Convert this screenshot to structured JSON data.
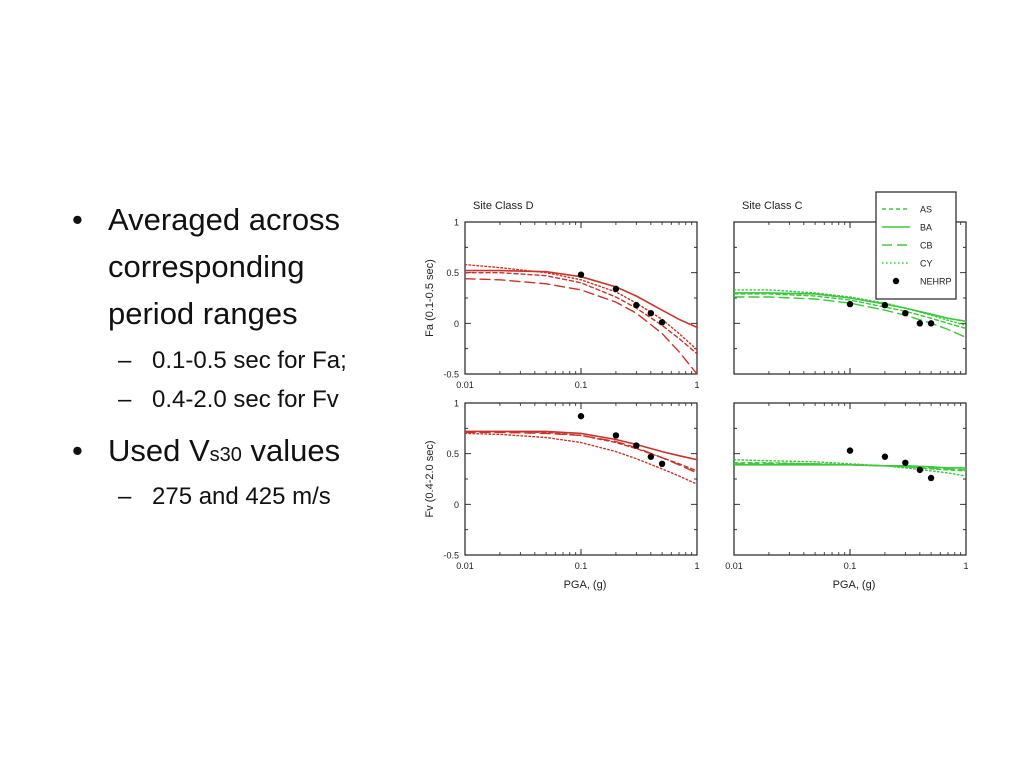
{
  "bullets": {
    "item1": "Averaged across corresponding period ranges",
    "item1_sub1": "0.1-0.5 sec for Fa;",
    "item1_sub2": "0.4-2.0 sec for Fv",
    "item2_pre": "Used V",
    "item2_sub": "s30",
    "item2_post": " values",
    "item2_sub1": "275 and 425 m/s",
    "dash": "–",
    "bullet": "•"
  },
  "chart_data": [
    {
      "type": "line",
      "title": "Site Class D",
      "xlabel": "",
      "ylabel": "Fa (0.1-0.5 sec)",
      "xscale": "log",
      "xlim": [
        0.01,
        1
      ],
      "ylim": [
        -0.5,
        1
      ],
      "xticks": [
        "0.01",
        "0.1",
        "1"
      ],
      "yticks": [
        "-0.5",
        "0",
        "0.5",
        "1"
      ],
      "color": "#c8342c",
      "series": [
        {
          "name": "AS",
          "style": "short-dash",
          "x": [
            0.01,
            0.02,
            0.05,
            0.1,
            0.2,
            0.3,
            0.5,
            0.7,
            1.0
          ],
          "y": [
            0.5,
            0.5,
            0.47,
            0.4,
            0.26,
            0.15,
            -0.02,
            -0.15,
            -0.3
          ]
        },
        {
          "name": "BA",
          "style": "solid",
          "x": [
            0.01,
            0.02,
            0.05,
            0.1,
            0.2,
            0.3,
            0.5,
            0.7,
            1.0
          ],
          "y": [
            0.52,
            0.52,
            0.51,
            0.46,
            0.36,
            0.27,
            0.13,
            0.04,
            -0.04
          ]
        },
        {
          "name": "CB",
          "style": "long-dash",
          "x": [
            0.01,
            0.02,
            0.05,
            0.1,
            0.2,
            0.3,
            0.5,
            0.7,
            1.0
          ],
          "y": [
            0.44,
            0.43,
            0.39,
            0.33,
            0.21,
            0.1,
            -0.1,
            -0.28,
            -0.5
          ]
        },
        {
          "name": "CY",
          "style": "dotted",
          "x": [
            0.01,
            0.02,
            0.05,
            0.1,
            0.2,
            0.3,
            0.5,
            0.7,
            1.0
          ],
          "y": [
            0.58,
            0.55,
            0.5,
            0.43,
            0.31,
            0.2,
            0.04,
            -0.1,
            -0.26
          ]
        }
      ],
      "nehrp_points": {
        "x": [
          0.1,
          0.2,
          0.3,
          0.4,
          0.5
        ],
        "y": [
          0.48,
          0.34,
          0.18,
          0.1,
          0.01
        ]
      }
    },
    {
      "type": "line",
      "title": "Site Class C",
      "xlabel": "",
      "ylabel": "",
      "xscale": "log",
      "xlim": [
        0.01,
        1
      ],
      "ylim": [
        -0.5,
        1
      ],
      "xticks": [],
      "yticks": [],
      "color": "#3cc83c",
      "series": [
        {
          "name": "AS",
          "style": "short-dash",
          "x": [
            0.01,
            0.02,
            0.05,
            0.1,
            0.2,
            0.3,
            0.5,
            0.7,
            1.0
          ],
          "y": [
            0.29,
            0.29,
            0.27,
            0.23,
            0.16,
            0.12,
            0.05,
            0.0,
            -0.05
          ]
        },
        {
          "name": "BA",
          "style": "solid",
          "x": [
            0.01,
            0.02,
            0.05,
            0.1,
            0.2,
            0.3,
            0.5,
            0.7,
            1.0
          ],
          "y": [
            0.3,
            0.3,
            0.29,
            0.25,
            0.19,
            0.15,
            0.09,
            0.05,
            0.02
          ]
        },
        {
          "name": "CB",
          "style": "long-dash",
          "x": [
            0.01,
            0.02,
            0.05,
            0.1,
            0.2,
            0.3,
            0.5,
            0.7,
            1.0
          ],
          "y": [
            0.26,
            0.26,
            0.24,
            0.2,
            0.13,
            0.08,
            0.0,
            -0.06,
            -0.14
          ]
        },
        {
          "name": "CY",
          "style": "dotted",
          "x": [
            0.01,
            0.02,
            0.05,
            0.1,
            0.2,
            0.3,
            0.5,
            0.7,
            1.0
          ],
          "y": [
            0.33,
            0.33,
            0.3,
            0.26,
            0.2,
            0.15,
            0.08,
            0.03,
            -0.02
          ]
        }
      ],
      "nehrp_points": {
        "x": [
          0.1,
          0.2,
          0.3,
          0.4,
          0.5
        ],
        "y": [
          0.19,
          0.18,
          0.1,
          0.0,
          0.0
        ]
      },
      "legend": {
        "position": "top-right",
        "entries": [
          "AS",
          "BA",
          "CB",
          "CY",
          "NEHRP"
        ]
      }
    },
    {
      "type": "line",
      "title": "",
      "xlabel": "PGA, (g)",
      "ylabel": "Fv (0.4-2.0 sec)",
      "xscale": "log",
      "xlim": [
        0.01,
        1
      ],
      "ylim": [
        -0.5,
        1
      ],
      "xticks": [
        "0.01",
        "0.1",
        "1"
      ],
      "yticks": [
        "-0.5",
        "0",
        "0.5",
        "1"
      ],
      "color": "#c8342c",
      "series": [
        {
          "name": "AS",
          "style": "short-dash",
          "x": [
            0.01,
            0.02,
            0.05,
            0.1,
            0.2,
            0.3,
            0.5,
            0.7,
            1.0
          ],
          "y": [
            0.72,
            0.72,
            0.71,
            0.68,
            0.61,
            0.55,
            0.46,
            0.4,
            0.33
          ]
        },
        {
          "name": "BA",
          "style": "solid",
          "x": [
            0.01,
            0.02,
            0.05,
            0.1,
            0.2,
            0.3,
            0.5,
            0.7,
            1.0
          ],
          "y": [
            0.72,
            0.72,
            0.72,
            0.7,
            0.64,
            0.59,
            0.52,
            0.48,
            0.44
          ]
        },
        {
          "name": "CB",
          "style": "long-dash",
          "x": [
            0.01,
            0.02,
            0.05,
            0.1,
            0.2,
            0.3,
            0.5,
            0.7,
            1.0
          ],
          "y": [
            0.71,
            0.71,
            0.7,
            0.68,
            0.62,
            0.56,
            0.46,
            0.39,
            0.31
          ]
        },
        {
          "name": "CY",
          "style": "dotted",
          "x": [
            0.01,
            0.02,
            0.05,
            0.1,
            0.2,
            0.3,
            0.5,
            0.7,
            1.0
          ],
          "y": [
            0.7,
            0.69,
            0.66,
            0.61,
            0.52,
            0.45,
            0.35,
            0.28,
            0.2
          ]
        }
      ],
      "nehrp_points": {
        "x": [
          0.1,
          0.2,
          0.3,
          0.4,
          0.5
        ],
        "y": [
          0.87,
          0.68,
          0.58,
          0.47,
          0.4
        ]
      }
    },
    {
      "type": "line",
      "title": "",
      "xlabel": "PGA, (g)",
      "ylabel": "",
      "xscale": "log",
      "xlim": [
        0.01,
        1
      ],
      "ylim": [
        -0.5,
        1
      ],
      "xticks": [
        "0.01",
        "0.1",
        "1"
      ],
      "yticks": [],
      "color": "#3cc83c",
      "series": [
        {
          "name": "AS",
          "style": "short-dash",
          "x": [
            0.01,
            0.02,
            0.05,
            0.1,
            0.2,
            0.3,
            0.5,
            0.7,
            1.0
          ],
          "y": [
            0.41,
            0.41,
            0.4,
            0.39,
            0.38,
            0.37,
            0.35,
            0.34,
            0.33
          ]
        },
        {
          "name": "BA",
          "style": "solid",
          "x": [
            0.01,
            0.02,
            0.05,
            0.1,
            0.2,
            0.3,
            0.5,
            0.7,
            1.0
          ],
          "y": [
            0.39,
            0.39,
            0.39,
            0.39,
            0.38,
            0.38,
            0.37,
            0.36,
            0.36
          ]
        },
        {
          "name": "CB",
          "style": "long-dash",
          "x": [
            0.01,
            0.02,
            0.05,
            0.1,
            0.2,
            0.3,
            0.5,
            0.7,
            1.0
          ],
          "y": [
            0.4,
            0.4,
            0.4,
            0.39,
            0.38,
            0.37,
            0.36,
            0.35,
            0.34
          ]
        },
        {
          "name": "CY",
          "style": "dotted",
          "x": [
            0.01,
            0.02,
            0.05,
            0.1,
            0.2,
            0.3,
            0.5,
            0.7,
            1.0
          ],
          "y": [
            0.44,
            0.43,
            0.42,
            0.4,
            0.38,
            0.36,
            0.33,
            0.31,
            0.28
          ]
        }
      ],
      "nehrp_points": {
        "x": [
          0.1,
          0.2,
          0.3,
          0.4,
          0.5
        ],
        "y": [
          0.53,
          0.47,
          0.41,
          0.34,
          0.26
        ]
      }
    }
  ]
}
